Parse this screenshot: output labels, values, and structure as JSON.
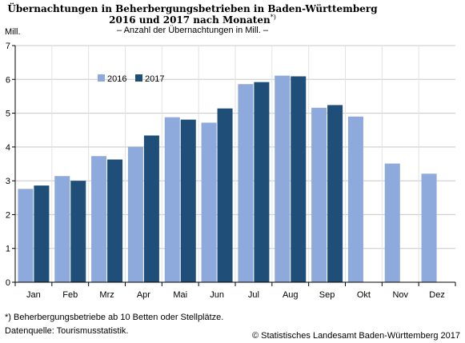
{
  "chart_data": {
    "type": "bar",
    "title_line1": "Übernachtungen in Beherbergungsbetrieben in Baden-Württemberg",
    "title_line2": "2016 und 2017 nach Monaten",
    "title_marker": "*)",
    "subtitle": "– Anzahl der Übernachtungen in Mill. –",
    "ylabel": "Mill.",
    "ylim": [
      0,
      7
    ],
    "yticks": [
      "0",
      "1",
      "2",
      "3",
      "4",
      "5",
      "6",
      "7"
    ],
    "categories": [
      "Jan",
      "Feb",
      "Mrz",
      "Apr",
      "Mai",
      "Jun",
      "Jul",
      "Aug",
      "Sep",
      "Okt",
      "Nov",
      "Dez"
    ],
    "series": [
      {
        "name": "2016",
        "color": "#8ea9db",
        "values": [
          2.76,
          3.14,
          3.73,
          4.01,
          4.88,
          4.72,
          5.86,
          6.11,
          5.16,
          4.9,
          3.51,
          3.21
        ]
      },
      {
        "name": "2017",
        "color": "#1f4e79",
        "values": [
          2.86,
          3.0,
          3.63,
          4.34,
          4.81,
          5.14,
          5.92,
          6.09,
          5.24,
          null,
          null,
          null
        ]
      }
    ],
    "grid": true,
    "legend_position": "top-left"
  },
  "footnote": "*) Beherbergungsbetriebe ab 10 Betten oder Stellplätze.",
  "source": "Datenquelle: Tourismusstatistik.",
  "copyright": "© Statistisches Landesamt Baden-Württemberg 2017"
}
